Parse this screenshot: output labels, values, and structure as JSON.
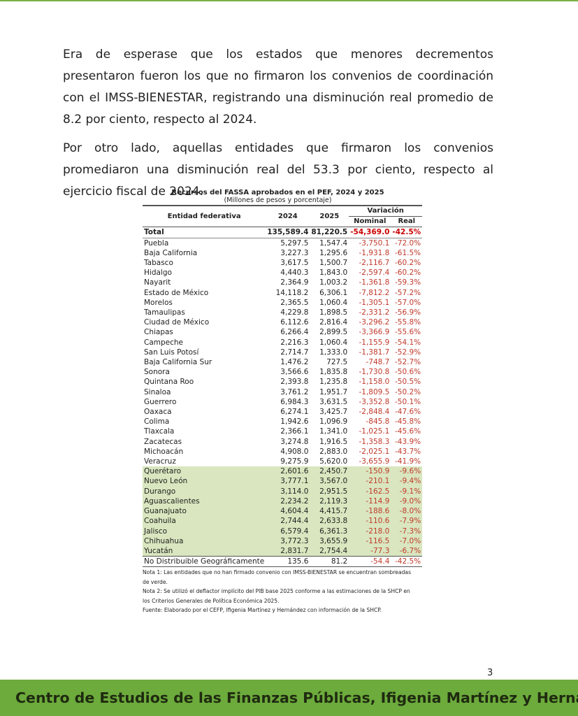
{
  "paragraphs": [
    "Era de esperase que los estados que menores decrementos presentaron fueron los que no firmaron los convenios de coordinación con el IMSS-BIENESTAR, registrando una disminución real promedio de 8.2 por ciento, respecto al 2024.",
    "Por otro lado, aquellas entidades que firmaron los convenios promediaron una disminución real del 53.3 por ciento, respecto al ejercicio fiscal de 2024."
  ],
  "table": {
    "title": "Recursos del FASSA aprobados en el PEF, 2024 y 2025",
    "subtitle": "(Millones de pesos y porcentaje)",
    "headers": {
      "entity": "Entidad federativa",
      "y2024": "2024",
      "y2025": "2025",
      "variation": "Variación",
      "nominal": "Nominal",
      "real": "Real"
    },
    "total": [
      "Total",
      "135,589.4",
      "81,220.5",
      "-54,369.0",
      "-42.5%"
    ],
    "rows": [
      [
        "Puebla",
        "5,297.5",
        "1,547.4",
        "-3,750.1",
        "-72.0%"
      ],
      [
        "Baja California",
        "3,227.3",
        "1,295.6",
        "-1,931.8",
        "-61.5%"
      ],
      [
        "Tabasco",
        "3,617.5",
        "1,500.7",
        "-2,116.7",
        "-60.2%"
      ],
      [
        "Hidalgo",
        "4,440.3",
        "1,843.0",
        "-2,597.4",
        "-60.2%"
      ],
      [
        "Nayarit",
        "2,364.9",
        "1,003.2",
        "-1,361.8",
        "-59.3%"
      ],
      [
        "Estado de México",
        "14,118.2",
        "6,306.1",
        "-7,812.2",
        "-57.2%"
      ],
      [
        "Morelos",
        "2,365.5",
        "1,060.4",
        "-1,305.1",
        "-57.0%"
      ],
      [
        "Tamaulipas",
        "4,229.8",
        "1,898.5",
        "-2,331.2",
        "-56.9%"
      ],
      [
        "Ciudad de México",
        "6,112.6",
        "2,816.4",
        "-3,296.2",
        "-55.8%"
      ],
      [
        "Chiapas",
        "6,266.4",
        "2,899.5",
        "-3,366.9",
        "-55.6%"
      ],
      [
        "Campeche",
        "2,216.3",
        "1,060.4",
        "-1,155.9",
        "-54.1%"
      ],
      [
        "San Luis Potosí",
        "2,714.7",
        "1,333.0",
        "-1,381.7",
        "-52.9%"
      ],
      [
        "Baja California Sur",
        "1,476.2",
        "727.5",
        "-748.7",
        "-52.7%"
      ],
      [
        "Sonora",
        "3,566.6",
        "1,835.8",
        "-1,730.8",
        "-50.6%"
      ],
      [
        "Quintana Roo",
        "2,393.8",
        "1,235.8",
        "-1,158.0",
        "-50.5%"
      ],
      [
        "Sinaloa",
        "3,761.2",
        "1,951.7",
        "-1,809.5",
        "-50.2%"
      ],
      [
        "Guerrero",
        "6,984.3",
        "3,631.5",
        "-3,352.8",
        "-50.1%"
      ],
      [
        "Oaxaca",
        "6,274.1",
        "3,425.7",
        "-2,848.4",
        "-47.6%"
      ],
      [
        "Colima",
        "1,942.6",
        "1,096.9",
        "-845.8",
        "-45.8%"
      ],
      [
        "Tlaxcala",
        "2,366.1",
        "1,341.0",
        "-1,025.1",
        "-45.6%"
      ],
      [
        "Zacatecas",
        "3,274.8",
        "1,916.5",
        "-1,358.3",
        "-43.9%"
      ],
      [
        "Michoacán",
        "4,908.0",
        "2,883.0",
        "-2,025.1",
        "-43.7%"
      ],
      [
        "Veracruz",
        "9,275.9",
        "5,620.0",
        "-3,655.9",
        "-41.9%"
      ]
    ],
    "green_rows": [
      [
        "Querétaro",
        "2,601.6",
        "2,450.7",
        "-150.9",
        "-9.6%"
      ],
      [
        "Nuevo León",
        "3,777.1",
        "3,567.0",
        "-210.1",
        "-9.4%"
      ],
      [
        "Durango",
        "3,114.0",
        "2,951.5",
        "-162.5",
        "-9.1%"
      ],
      [
        "Aguascalientes",
        "2,234.2",
        "2,119.3",
        "-114.9",
        "-9.0%"
      ],
      [
        "Guanajuato",
        "4,604.4",
        "4,415.7",
        "-188.6",
        "-8.0%"
      ],
      [
        "Coahuila",
        "2,744.4",
        "2,633.8",
        "-110.6",
        "-7.9%"
      ],
      [
        "Jalisco",
        "6,579.4",
        "6,361.3",
        "-218.0",
        "-7.3%"
      ],
      [
        "Chihuahua",
        "3,772.3",
        "3,655.9",
        "-116.5",
        "-7.0%"
      ],
      [
        "Yucatán",
        "2,831.7",
        "2,754.4",
        "-77.3",
        "-6.7%"
      ]
    ],
    "last": [
      "No Distribuible Geográficamente",
      "135.6",
      "81.2",
      "-54.4",
      "-42.5%"
    ],
    "notes": [
      "Nota 1: Las entidades que no han firmado convenio con IMSS-BIENESTAR se encuentran sombreadas de verde.",
      "Nota 2: Se utilizó el deflactor implícito del PIB base 2025 conforme a las estimaciones de la SHCP en los Criterios Generales de Política Económica 2025.",
      "Fuente: Elaborado por el CEFP, Ifigenia Martínez y Hernández con información de la SHCP."
    ]
  },
  "page_number": "3",
  "footer": "Centro de Estudios de las Finanzas Públicas, Ifigenia Martínez y Hernández",
  "colors": {
    "green": "#6cab3c",
    "shade": "#d9e6bf",
    "negative": "#c0392b"
  }
}
